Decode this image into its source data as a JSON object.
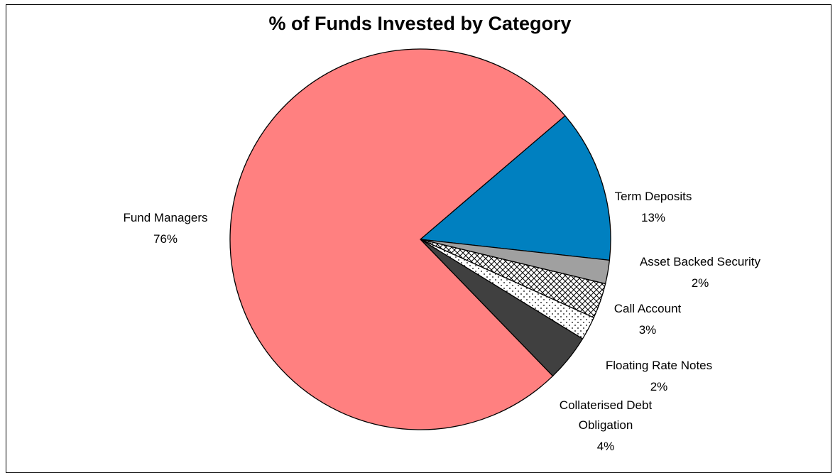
{
  "chart_data": {
    "type": "pie",
    "title": "% of Funds Invested by Category",
    "slices": [
      {
        "label": "Term Deposits",
        "value": 13,
        "display": "13%",
        "color": "#0080C0",
        "pattern": "solid"
      },
      {
        "label": "Asset Backed Security",
        "value": 2,
        "display": "2%",
        "color": "#A0A0A0",
        "pattern": "solid"
      },
      {
        "label": "Call Account",
        "value": 3,
        "display": "3%",
        "color": "#FFFFFF",
        "pattern": "crosshatch"
      },
      {
        "label": "Floating Rate Notes",
        "value": 2,
        "display": "2%",
        "color": "#FFFFFF",
        "pattern": "dots"
      },
      {
        "label": "Collaterised Debt Obligation",
        "value": 4,
        "display": "4%",
        "color": "#404040",
        "pattern": "solid"
      },
      {
        "label": "Fund Managers",
        "value": 76,
        "display": "76%",
        "color": "#FF8080",
        "pattern": "solid"
      }
    ]
  }
}
